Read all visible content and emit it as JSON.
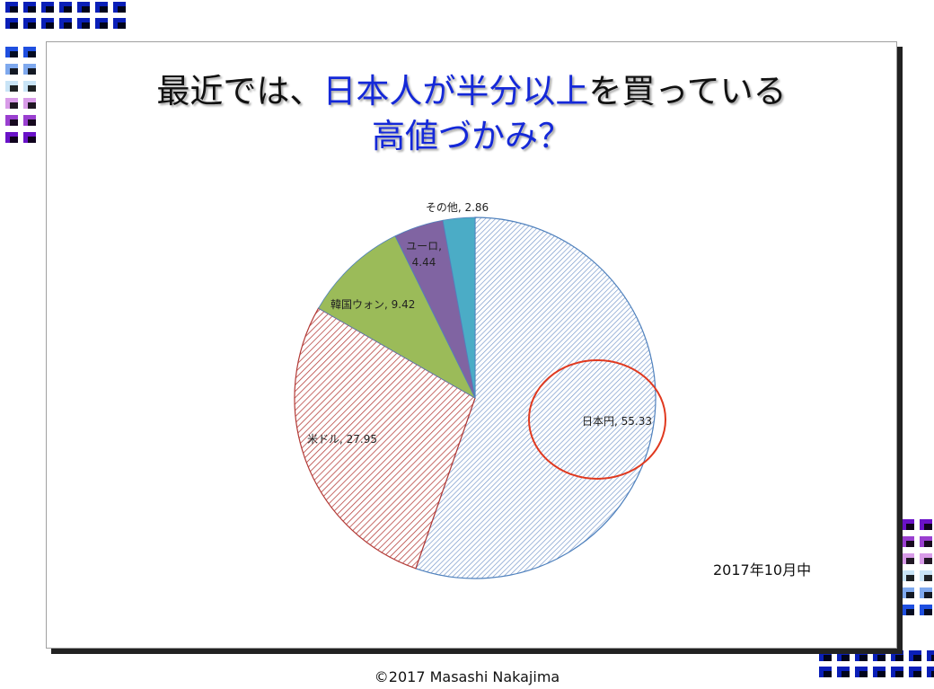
{
  "title": {
    "line1_part1": "最近では、",
    "line1_part2": "日本人が半分以上",
    "line1_part3": "を買っている",
    "line2": "高値づかみ？"
  },
  "date_note": "2017年10月中",
  "copyright": "©2017 Masashi Nakajima",
  "colors": {
    "title_blue": "#1428d8",
    "highlight_circle": "#e0391f",
    "pie_outline": "#4f81bd"
  },
  "chart_data": {
    "type": "pie",
    "title": "",
    "start_angle": "12 o'clock",
    "direction": "clockwise",
    "slices": [
      {
        "label": "日本円",
        "value": 55.33,
        "display": "日本円, 55.33",
        "fill": "hatch-blue"
      },
      {
        "label": "米ドル",
        "value": 27.95,
        "display": "米ドル, 27.95",
        "fill": "hatch-red"
      },
      {
        "label": "韓国ウォン",
        "value": 9.42,
        "display": "韓国ウォン, 9.42",
        "fill": "#9bbb59"
      },
      {
        "label": "ユーロ",
        "value": 4.44,
        "display_line1": "ユーロ,",
        "display_line2": "4.44",
        "fill": "#8064a2"
      },
      {
        "label": "その他",
        "value": 2.86,
        "display": "その他, 2.86",
        "fill": "#4bacc6"
      }
    ],
    "annotation": "red circle highlighting 日本円 slice"
  }
}
